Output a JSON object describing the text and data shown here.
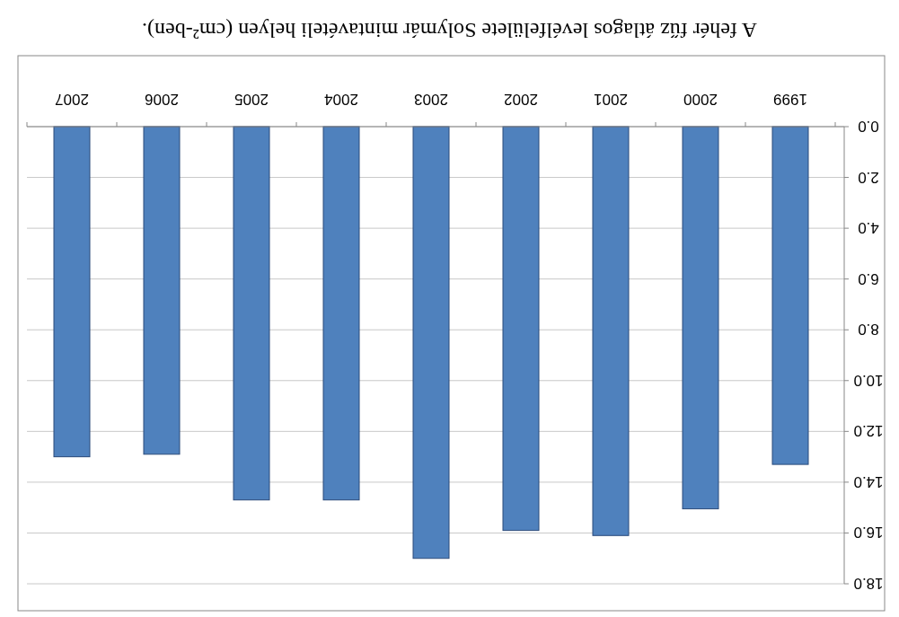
{
  "chart_data": {
    "type": "bar",
    "title": "A fehér fűz átlagos levélfelülete Solymár mintavételi helyen (cm²-ben).",
    "categories": [
      "2007",
      "2006",
      "2005",
      "2004",
      "2003",
      "2002",
      "2001",
      "2000",
      "1999"
    ],
    "values": [
      13.0,
      12.9,
      14.7,
      14.7,
      17.0,
      15.9,
      16.1,
      15.05,
      13.3
    ],
    "color": "#4f81bd",
    "ylim": [
      18,
      0
    ],
    "yticks": [
      {
        "value": 0,
        "label": "0.0"
      },
      {
        "value": 2,
        "label": "2.0"
      },
      {
        "value": 4,
        "label": "4.0"
      },
      {
        "value": 6,
        "label": "6.0"
      },
      {
        "value": 8,
        "label": "8.0"
      },
      {
        "value": 10,
        "label": "10.0"
      },
      {
        "value": 12,
        "label": "12.0"
      },
      {
        "value": 14,
        "label": "14.0"
      },
      {
        "value": 16,
        "label": "16.0"
      },
      {
        "value": 18,
        "label": "18.0"
      }
    ],
    "grid": true
  }
}
